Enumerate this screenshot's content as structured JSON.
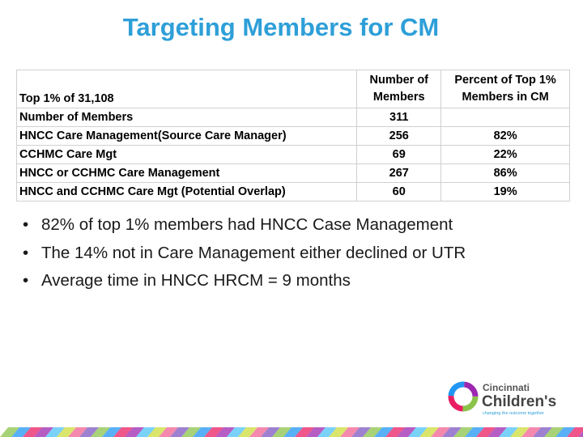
{
  "header": {
    "title": "Targeting Members for CM"
  },
  "table": {
    "columns": [
      "Top 1% of 31,108",
      "Number of Members",
      "Percent of Top 1% Members in CM"
    ],
    "rows": [
      [
        "Number of Members",
        "311"
      ],
      [
        "HNCC Care Management(Source Care Manager)",
        "256",
        "82%"
      ],
      [
        "CCHMC Care Mgt",
        "69",
        "22%"
      ],
      [
        "HNCC or CCHMC Care Management",
        "267",
        "86%"
      ],
      [
        "HNCC and CCHMC Care Mgt (Potential Overlap)",
        "60",
        "19%"
      ]
    ]
  },
  "bullets": [
    "82% of top 1% members had HNCC Case Management",
    "The 14% not in Care Management either declined or UTR",
    "Average time in HNCC HRCM = 9 months"
  ],
  "logo": {
    "line1": "Cincinnati",
    "line2": "Children's",
    "tagline": "changing the outcome together"
  }
}
